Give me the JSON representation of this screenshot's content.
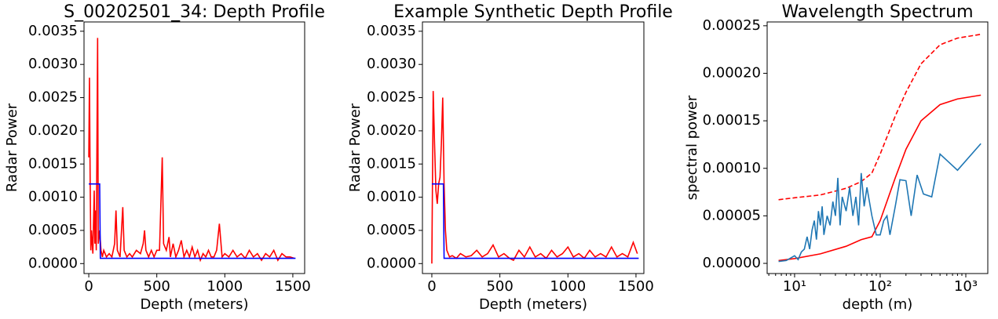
{
  "chart_data": [
    {
      "type": "line",
      "title": "S_00202501_34: Depth Profile",
      "xlabel": "Depth (meters)",
      "ylabel": "Radar Power",
      "xlim": [
        -35,
        1587
      ],
      "ylim": [
        -0.00015,
        0.00364
      ],
      "xticks": [
        0,
        500,
        1000,
        1500
      ],
      "yticks": [
        {
          "value": 0,
          "label": "0.0000"
        },
        {
          "value": 0.0005,
          "label": "0.0005"
        },
        {
          "value": 0.001,
          "label": "0.0010"
        },
        {
          "value": 0.0015,
          "label": "0.0015"
        },
        {
          "value": 0.002,
          "label": "0.0020"
        },
        {
          "value": 0.0025,
          "label": "0.0025"
        },
        {
          "value": 0.003,
          "label": "0.0030"
        },
        {
          "value": 0.0035,
          "label": "0.0035"
        }
      ],
      "series": [
        {
          "color": "#ff0000",
          "x": [
            0,
            5,
            10,
            15,
            20,
            30,
            40,
            45,
            50,
            55,
            65,
            70,
            80,
            90,
            100,
            110,
            130,
            150,
            170,
            190,
            200,
            210,
            230,
            250,
            260,
            280,
            300,
            320,
            350,
            380,
            400,
            410,
            420,
            440,
            460,
            480,
            500,
            520,
            540,
            550,
            570,
            590,
            600,
            620,
            640,
            660,
            680,
            700,
            720,
            740,
            760,
            780,
            800,
            820,
            840,
            860,
            880,
            900,
            920,
            940,
            960,
            980,
            1000,
            1030,
            1060,
            1090,
            1120,
            1150,
            1180,
            1210,
            1240,
            1270,
            1300,
            1330,
            1360,
            1390,
            1420,
            1450,
            1480,
            1510
          ],
          "values": [
            0.0016,
            0.0028,
            0.0013,
            0.0002,
            0.0005,
            0.00015,
            0.0011,
            0.0003,
            0.0008,
            0.0002,
            0.0034,
            0.0003,
            0.0005,
            0.0002,
            0.0001,
            0.0002,
            0.0001,
            0.00015,
            0.0001,
            0.0003,
            0.0008,
            0.0002,
            0.0001,
            0.00085,
            0.0002,
            0.0001,
            0.00015,
            0.0001,
            0.0002,
            0.00015,
            0.0003,
            0.0005,
            0.0002,
            0.0001,
            0.0002,
            0.0001,
            0.0002,
            0.0002,
            0.0016,
            0.0003,
            0.0002,
            0.0004,
            0.0001,
            0.0003,
            0.0001,
            0.0002,
            0.00035,
            0.0001,
            0.0002,
            0.0001,
            0.00025,
            0.0001,
            0.0002,
            5e-05,
            0.00015,
            0.0001,
            0.0002,
            0.0001,
            0.0001,
            0.0002,
            0.0006,
            0.0001,
            0.00015,
            0.0001,
            0.0002,
            0.0001,
            0.00015,
            8e-05,
            0.0002,
            0.0001,
            0.00015,
            5e-05,
            0.00015,
            0.0001,
            0.0002,
            5e-05,
            0.00015,
            0.0001,
            0.0001,
            8e-05
          ]
        },
        {
          "color": "#0000ff",
          "x": [
            0,
            80,
            85,
            1520
          ],
          "values": [
            0.0012,
            0.0012,
            8e-05,
            8e-05
          ]
        }
      ]
    },
    {
      "type": "line",
      "title": "Example Synthetic Depth Profile",
      "xlabel": "Depth (meters)",
      "ylabel": "Radar Power",
      "xlim": [
        -69,
        1558
      ],
      "ylim": [
        -0.00015,
        0.00364
      ],
      "xticks": [
        0,
        500,
        1000,
        1500
      ],
      "yticks": [
        {
          "value": 0,
          "label": "0.0000"
        },
        {
          "value": 0.0005,
          "label": "0.0005"
        },
        {
          "value": 0.001,
          "label": "0.0010"
        },
        {
          "value": 0.0015,
          "label": "0.0015"
        },
        {
          "value": 0.002,
          "label": "0.0020"
        },
        {
          "value": 0.0025,
          "label": "0.0025"
        },
        {
          "value": 0.003,
          "label": "0.0030"
        },
        {
          "value": 0.0035,
          "label": "0.0035"
        }
      ],
      "series": [
        {
          "color": "#ff0000",
          "x": [
            0,
            10,
            20,
            30,
            40,
            50,
            60,
            70,
            80,
            90,
            100,
            110,
            130,
            150,
            180,
            210,
            250,
            290,
            330,
            370,
            410,
            450,
            490,
            530,
            570,
            600,
            640,
            680,
            720,
            760,
            800,
            840,
            880,
            920,
            960,
            1000,
            1040,
            1080,
            1120,
            1160,
            1200,
            1240,
            1280,
            1320,
            1360,
            1400,
            1440,
            1480,
            1510
          ],
          "values": [
            0,
            0.0026,
            0.0018,
            0.0011,
            0.0009,
            0.0012,
            0.0013,
            0.0018,
            0.0025,
            0.0012,
            0.0005,
            0.0002,
            0.0001,
            0.00012,
            8e-05,
            0.00015,
            0.0001,
            0.00012,
            0.0002,
            0.0001,
            0.00015,
            0.00028,
            0.0001,
            0.00015,
            8e-05,
            5e-05,
            0.0002,
            0.0001,
            0.00025,
            0.0001,
            0.00015,
            8e-05,
            0.0002,
            0.0001,
            0.00015,
            0.00025,
            0.0001,
            0.00015,
            8e-05,
            0.0002,
            0.0001,
            0.00015,
            0.0001,
            0.00025,
            0.0001,
            0.00015,
            0.0001,
            0.00032,
            0.00015
          ]
        },
        {
          "color": "#0000ff",
          "x": [
            0,
            85,
            90,
            1520
          ],
          "values": [
            0.0012,
            0.0012,
            8e-05,
            8e-05
          ]
        }
      ]
    },
    {
      "type": "line",
      "title": "Wavelength Spectrum",
      "xlabel": "depth (m)",
      "ylabel": "spectral power",
      "xscale": "log",
      "xlim": [
        4.78,
        1807
      ],
      "ylim": [
        -1.07e-05,
        0.000254
      ],
      "xticks": [
        {
          "value": 10,
          "label": "10¹"
        },
        {
          "value": 100,
          "label": "10²"
        },
        {
          "value": 1000,
          "label": "10³"
        }
      ],
      "xminorticks": [
        5,
        6,
        7,
        8,
        9,
        20,
        30,
        40,
        50,
        60,
        70,
        80,
        90,
        200,
        300,
        400,
        500,
        600,
        700,
        800,
        900
      ],
      "yticks": [
        {
          "value": 0,
          "label": "0.00000"
        },
        {
          "value": 5e-05,
          "label": "0.00005"
        },
        {
          "value": 0.0001,
          "label": "0.00010"
        },
        {
          "value": 0.00015,
          "label": "0.00015"
        },
        {
          "value": 0.0002,
          "label": "0.00020"
        },
        {
          "value": 0.00025,
          "label": "0.00025"
        }
      ],
      "series": [
        {
          "color": "#ff0000",
          "linestyle": "dashed",
          "x": [
            6.5,
            10,
            20,
            40,
            60,
            80,
            100,
            150,
            200,
            300,
            500,
            800,
            1500
          ],
          "values": [
            6.7e-05,
            6.9e-05,
            7.2e-05,
            7.9e-05,
            8.6e-05,
            9.5e-05,
            0.000115,
            0.000155,
            0.00018,
            0.00021,
            0.00023,
            0.000237,
            0.000241
          ]
        },
        {
          "color": "#ff0000",
          "x": [
            6.5,
            10,
            20,
            40,
            60,
            80,
            100,
            150,
            200,
            300,
            500,
            800,
            1500
          ],
          "values": [
            3e-06,
            5e-06,
            1e-05,
            1.8e-05,
            2.5e-05,
            2.8e-05,
            4.5e-05,
            9e-05,
            0.00012,
            0.00015,
            0.000167,
            0.000173,
            0.000177
          ]
        },
        {
          "color": "#1f77b4",
          "x": [
            6.5,
            8,
            10,
            11,
            12,
            13,
            14,
            15,
            16,
            17,
            18,
            19,
            20,
            21,
            22,
            24,
            26,
            28,
            30,
            32,
            34,
            36,
            40,
            44,
            48,
            52,
            56,
            60,
            65,
            70,
            80,
            90,
            100,
            110,
            120,
            130,
            150,
            170,
            200,
            230,
            270,
            320,
            400,
            500,
            800,
            1500
          ],
          "values": [
            2e-06,
            3e-06,
            8e-06,
            4e-06,
            1.2e-05,
            1.5e-05,
            2.8e-05,
            1.5e-05,
            3.5e-05,
            4.5e-05,
            2.5e-05,
            5.5e-05,
            4e-05,
            6e-05,
            3e-05,
            5e-05,
            4e-05,
            6.5e-05,
            5e-05,
            9e-05,
            4e-05,
            7e-05,
            5.5e-05,
            8e-05,
            5e-05,
            7e-05,
            4e-05,
            9.5e-05,
            6e-05,
            8e-05,
            5e-05,
            3e-05,
            3e-05,
            4.5e-05,
            5e-05,
            3e-05,
            6e-05,
            8.8e-05,
            8.7e-05,
            5e-05,
            9.3e-05,
            7.3e-05,
            7e-05,
            0.000115,
            9.8e-05,
            0.000126
          ]
        }
      ]
    }
  ]
}
